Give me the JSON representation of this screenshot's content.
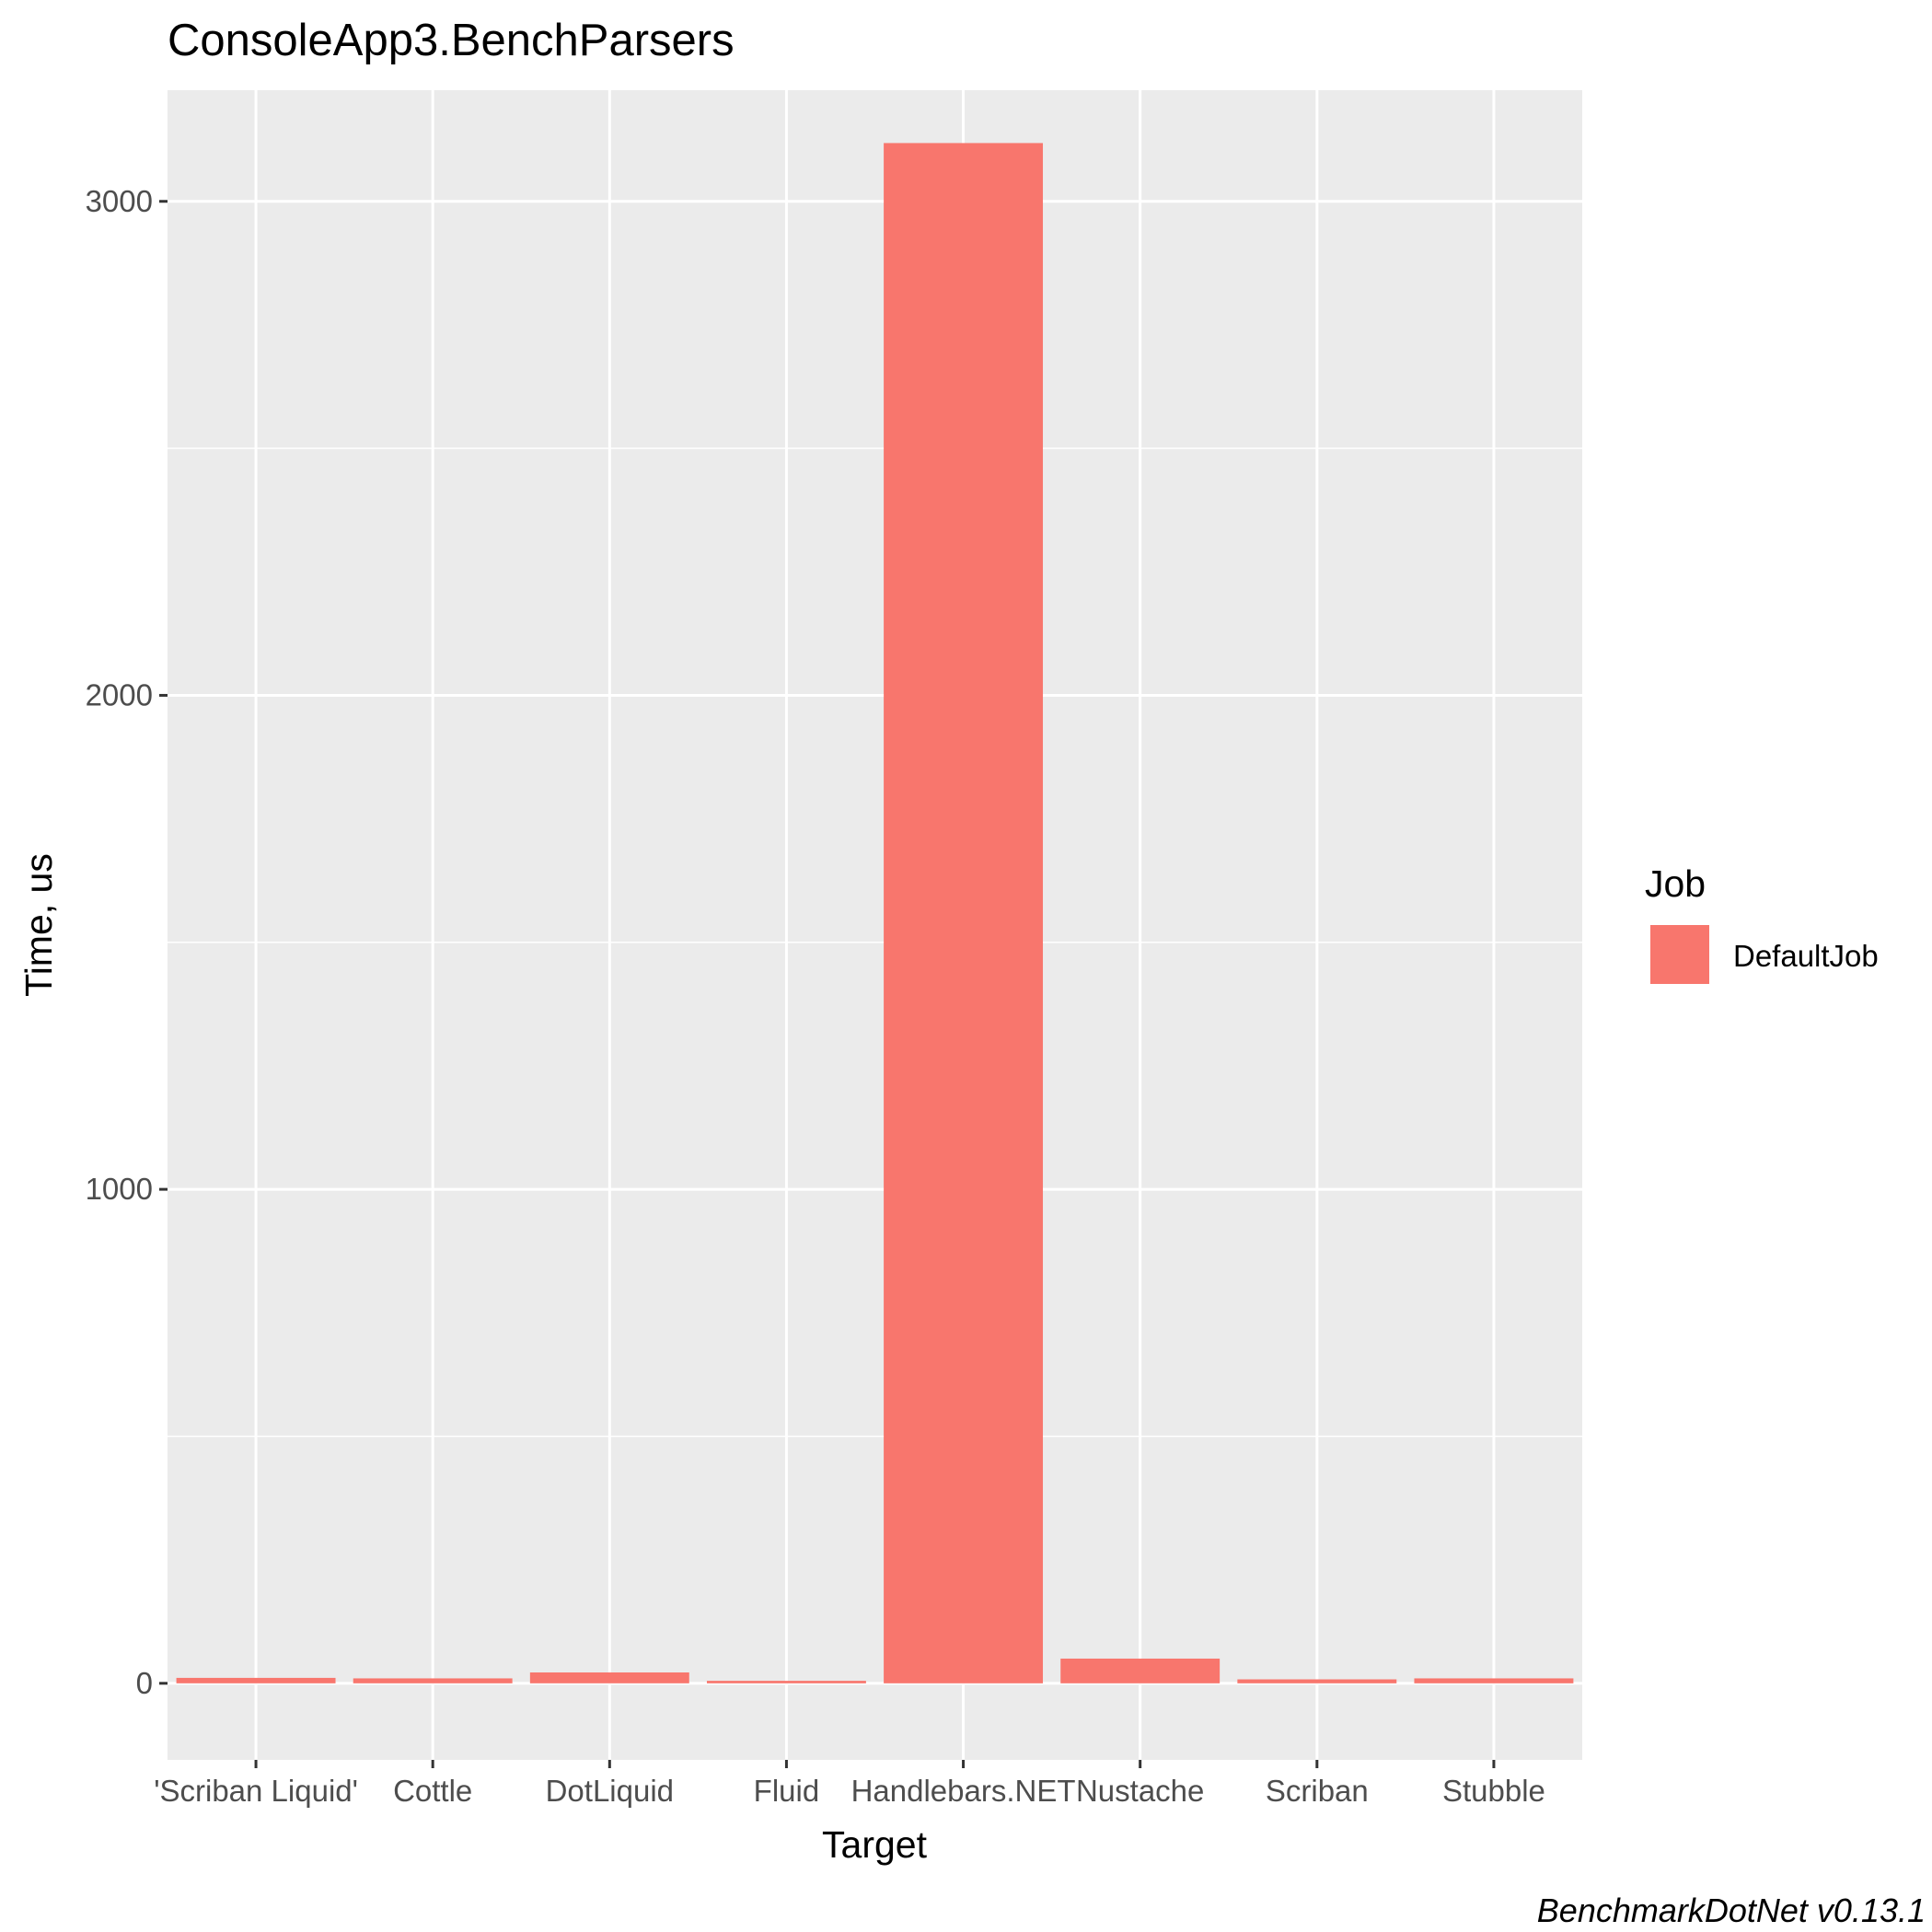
{
  "chart_data": {
    "type": "bar",
    "title": "ConsoleApp3.BenchParsers",
    "xlabel": "Target",
    "ylabel": "Time, us",
    "categories": [
      "'Scriban Liquid'",
      "Cottle",
      "DotLiquid",
      "Fluid",
      "Handlebars.NET",
      "Nustache",
      "Scriban",
      "Stubble"
    ],
    "series": [
      {
        "name": "DefaultJob",
        "values": [
          11,
          10,
          22,
          5,
          3118,
          50,
          8,
          10
        ]
      }
    ],
    "ylim": [
      -155,
      3225
    ],
    "yticks": [
      0,
      1000,
      2000,
      3000
    ],
    "legend": {
      "title": "Job",
      "position": "right"
    },
    "caption": "BenchmarkDotNet v0.13.1",
    "grid": true,
    "colors": {
      "bar": "#F8766D",
      "panel": "#EBEBEB",
      "grid": "#FFFFFF",
      "tick": "#333333",
      "tick_text": "#4D4D4D"
    }
  }
}
